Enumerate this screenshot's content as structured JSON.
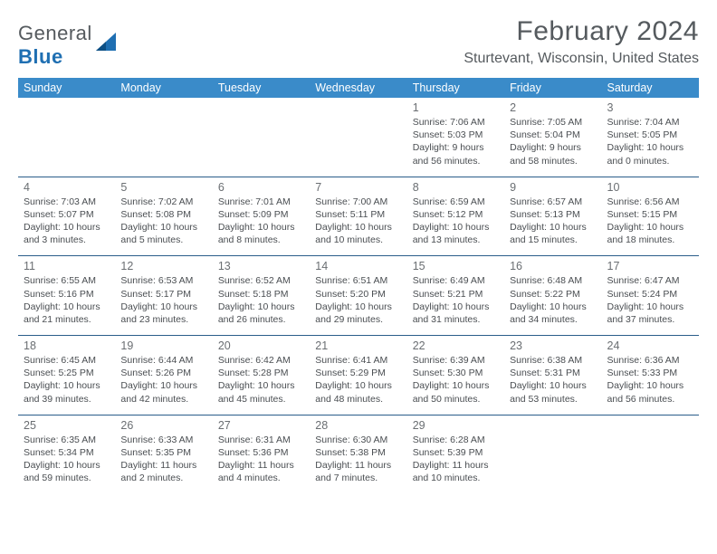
{
  "logo": {
    "name": "General",
    "accent": "Blue"
  },
  "title": "February 2024",
  "location": "Sturtevant, Wisconsin, United States",
  "header_bg": "#3a8bc9",
  "border_color": "#2a5d8a",
  "weekdays": [
    "Sunday",
    "Monday",
    "Tuesday",
    "Wednesday",
    "Thursday",
    "Friday",
    "Saturday"
  ],
  "weeks": [
    [
      null,
      null,
      null,
      null,
      {
        "n": "1",
        "sr": "Sunrise: 7:06 AM",
        "ss": "Sunset: 5:03 PM",
        "d1": "Daylight: 9 hours",
        "d2": "and 56 minutes."
      },
      {
        "n": "2",
        "sr": "Sunrise: 7:05 AM",
        "ss": "Sunset: 5:04 PM",
        "d1": "Daylight: 9 hours",
        "d2": "and 58 minutes."
      },
      {
        "n": "3",
        "sr": "Sunrise: 7:04 AM",
        "ss": "Sunset: 5:05 PM",
        "d1": "Daylight: 10 hours",
        "d2": "and 0 minutes."
      }
    ],
    [
      {
        "n": "4",
        "sr": "Sunrise: 7:03 AM",
        "ss": "Sunset: 5:07 PM",
        "d1": "Daylight: 10 hours",
        "d2": "and 3 minutes."
      },
      {
        "n": "5",
        "sr": "Sunrise: 7:02 AM",
        "ss": "Sunset: 5:08 PM",
        "d1": "Daylight: 10 hours",
        "d2": "and 5 minutes."
      },
      {
        "n": "6",
        "sr": "Sunrise: 7:01 AM",
        "ss": "Sunset: 5:09 PM",
        "d1": "Daylight: 10 hours",
        "d2": "and 8 minutes."
      },
      {
        "n": "7",
        "sr": "Sunrise: 7:00 AM",
        "ss": "Sunset: 5:11 PM",
        "d1": "Daylight: 10 hours",
        "d2": "and 10 minutes."
      },
      {
        "n": "8",
        "sr": "Sunrise: 6:59 AM",
        "ss": "Sunset: 5:12 PM",
        "d1": "Daylight: 10 hours",
        "d2": "and 13 minutes."
      },
      {
        "n": "9",
        "sr": "Sunrise: 6:57 AM",
        "ss": "Sunset: 5:13 PM",
        "d1": "Daylight: 10 hours",
        "d2": "and 15 minutes."
      },
      {
        "n": "10",
        "sr": "Sunrise: 6:56 AM",
        "ss": "Sunset: 5:15 PM",
        "d1": "Daylight: 10 hours",
        "d2": "and 18 minutes."
      }
    ],
    [
      {
        "n": "11",
        "sr": "Sunrise: 6:55 AM",
        "ss": "Sunset: 5:16 PM",
        "d1": "Daylight: 10 hours",
        "d2": "and 21 minutes."
      },
      {
        "n": "12",
        "sr": "Sunrise: 6:53 AM",
        "ss": "Sunset: 5:17 PM",
        "d1": "Daylight: 10 hours",
        "d2": "and 23 minutes."
      },
      {
        "n": "13",
        "sr": "Sunrise: 6:52 AM",
        "ss": "Sunset: 5:18 PM",
        "d1": "Daylight: 10 hours",
        "d2": "and 26 minutes."
      },
      {
        "n": "14",
        "sr": "Sunrise: 6:51 AM",
        "ss": "Sunset: 5:20 PM",
        "d1": "Daylight: 10 hours",
        "d2": "and 29 minutes."
      },
      {
        "n": "15",
        "sr": "Sunrise: 6:49 AM",
        "ss": "Sunset: 5:21 PM",
        "d1": "Daylight: 10 hours",
        "d2": "and 31 minutes."
      },
      {
        "n": "16",
        "sr": "Sunrise: 6:48 AM",
        "ss": "Sunset: 5:22 PM",
        "d1": "Daylight: 10 hours",
        "d2": "and 34 minutes."
      },
      {
        "n": "17",
        "sr": "Sunrise: 6:47 AM",
        "ss": "Sunset: 5:24 PM",
        "d1": "Daylight: 10 hours",
        "d2": "and 37 minutes."
      }
    ],
    [
      {
        "n": "18",
        "sr": "Sunrise: 6:45 AM",
        "ss": "Sunset: 5:25 PM",
        "d1": "Daylight: 10 hours",
        "d2": "and 39 minutes."
      },
      {
        "n": "19",
        "sr": "Sunrise: 6:44 AM",
        "ss": "Sunset: 5:26 PM",
        "d1": "Daylight: 10 hours",
        "d2": "and 42 minutes."
      },
      {
        "n": "20",
        "sr": "Sunrise: 6:42 AM",
        "ss": "Sunset: 5:28 PM",
        "d1": "Daylight: 10 hours",
        "d2": "and 45 minutes."
      },
      {
        "n": "21",
        "sr": "Sunrise: 6:41 AM",
        "ss": "Sunset: 5:29 PM",
        "d1": "Daylight: 10 hours",
        "d2": "and 48 minutes."
      },
      {
        "n": "22",
        "sr": "Sunrise: 6:39 AM",
        "ss": "Sunset: 5:30 PM",
        "d1": "Daylight: 10 hours",
        "d2": "and 50 minutes."
      },
      {
        "n": "23",
        "sr": "Sunrise: 6:38 AM",
        "ss": "Sunset: 5:31 PM",
        "d1": "Daylight: 10 hours",
        "d2": "and 53 minutes."
      },
      {
        "n": "24",
        "sr": "Sunrise: 6:36 AM",
        "ss": "Sunset: 5:33 PM",
        "d1": "Daylight: 10 hours",
        "d2": "and 56 minutes."
      }
    ],
    [
      {
        "n": "25",
        "sr": "Sunrise: 6:35 AM",
        "ss": "Sunset: 5:34 PM",
        "d1": "Daylight: 10 hours",
        "d2": "and 59 minutes."
      },
      {
        "n": "26",
        "sr": "Sunrise: 6:33 AM",
        "ss": "Sunset: 5:35 PM",
        "d1": "Daylight: 11 hours",
        "d2": "and 2 minutes."
      },
      {
        "n": "27",
        "sr": "Sunrise: 6:31 AM",
        "ss": "Sunset: 5:36 PM",
        "d1": "Daylight: 11 hours",
        "d2": "and 4 minutes."
      },
      {
        "n": "28",
        "sr": "Sunrise: 6:30 AM",
        "ss": "Sunset: 5:38 PM",
        "d1": "Daylight: 11 hours",
        "d2": "and 7 minutes."
      },
      {
        "n": "29",
        "sr": "Sunrise: 6:28 AM",
        "ss": "Sunset: 5:39 PM",
        "d1": "Daylight: 11 hours",
        "d2": "and 10 minutes."
      },
      null,
      null
    ]
  ]
}
